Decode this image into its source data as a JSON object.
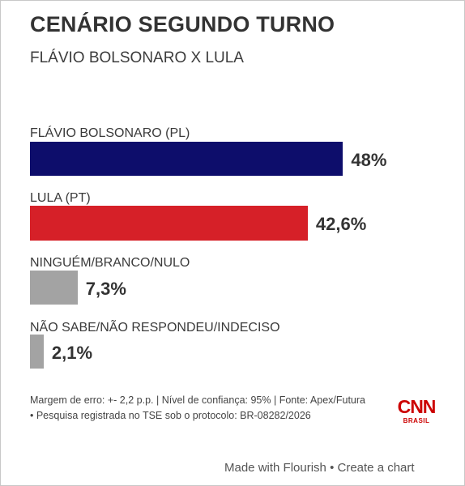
{
  "chart_data": {
    "type": "bar",
    "orientation": "horizontal",
    "title": "CENÁRIO SEGUNDO TURNO",
    "subtitle": "FLÁVIO BOLSONARO X LULA",
    "categories": [
      "FLÁVIO BOLSONARO (PL)",
      "LULA (PT)",
      "NINGUÉM/BRANCO/NULO",
      "NÃO SABE/NÃO RESPONDEU/INDECISO"
    ],
    "values": [
      48,
      42.6,
      7.3,
      2.1
    ],
    "value_labels": [
      "48%",
      "42,6%",
      "7,3%",
      "2,1%"
    ],
    "colors": [
      "#0d0d6b",
      "#d62028",
      "#a3a3a3",
      "#a3a3a3"
    ],
    "xlim": [
      0,
      100
    ],
    "grid": false,
    "legend": "none"
  },
  "footnote": "Margem de erro: +- 2,2 p.p. | Nível de confiança: 95% | Fonte: Apex/Futura • Pesquisa registrada no TSE sob o protocolo: BR-08282/2026",
  "logo": {
    "brand": "CNN",
    "sub": "BRASIL"
  },
  "credits": {
    "made_with": "Made with Flourish",
    "separator": "•",
    "create": "Create a chart"
  }
}
